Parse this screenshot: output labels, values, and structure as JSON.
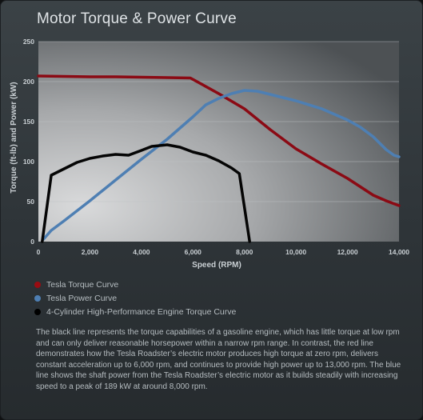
{
  "chart_data": {
    "type": "line",
    "title": "Motor Torque & Power Curve",
    "xlabel": "Speed (RPM)",
    "ylabel": "Torque (ft-lb) and Power (kW)",
    "xlim": [
      0,
      14000
    ],
    "ylim": [
      0,
      250
    ],
    "x_ticks": [
      0,
      2000,
      4000,
      6000,
      8000,
      10000,
      12000,
      14000
    ],
    "x_tick_labels": [
      "0",
      "2,000",
      "4,000",
      "6,000",
      "8,000",
      "10,000",
      "12,000",
      "14,000"
    ],
    "y_ticks": [
      0,
      50,
      100,
      150,
      200,
      250
    ],
    "y_tick_labels": [
      "0",
      "50",
      "100",
      "150",
      "200",
      "250"
    ],
    "grid": "horizontal",
    "legend_position": "below",
    "series": [
      {
        "name": "Tesla Torque Curve",
        "color": "#8b0a14",
        "points": [
          [
            0,
            207
          ],
          [
            1000,
            206.5
          ],
          [
            2000,
            206
          ],
          [
            3000,
            206
          ],
          [
            4000,
            205.5
          ],
          [
            5000,
            205
          ],
          [
            5900,
            204.5
          ],
          [
            7000,
            185
          ],
          [
            8000,
            166
          ],
          [
            9000,
            140
          ],
          [
            10000,
            116
          ],
          [
            11000,
            97
          ],
          [
            12000,
            79
          ],
          [
            13000,
            58
          ],
          [
            13500,
            51
          ],
          [
            14000,
            45
          ]
        ]
      },
      {
        "name": "Tesla Power Curve",
        "color": "#4e7fb3",
        "points": [
          [
            200,
            3
          ],
          [
            500,
            14
          ],
          [
            1000,
            26
          ],
          [
            2000,
            51
          ],
          [
            3000,
            77
          ],
          [
            4000,
            103
          ],
          [
            5000,
            128
          ],
          [
            6000,
            156
          ],
          [
            6500,
            171
          ],
          [
            7000,
            179
          ],
          [
            7500,
            185
          ],
          [
            8000,
            189
          ],
          [
            8500,
            188
          ],
          [
            9000,
            184
          ],
          [
            10000,
            176
          ],
          [
            11000,
            166
          ],
          [
            12000,
            152
          ],
          [
            12500,
            143
          ],
          [
            13000,
            131
          ],
          [
            13500,
            115
          ],
          [
            13800,
            108
          ],
          [
            14000,
            106
          ]
        ]
      },
      {
        "name": "4-Cylinder High-Performance Engine Torque Curve",
        "color": "#050505",
        "points": [
          [
            150,
            0
          ],
          [
            500,
            83
          ],
          [
            1000,
            91
          ],
          [
            1500,
            99
          ],
          [
            2000,
            104
          ],
          [
            2500,
            107
          ],
          [
            3000,
            109
          ],
          [
            3500,
            108
          ],
          [
            4000,
            114
          ],
          [
            4400,
            119
          ],
          [
            5000,
            121
          ],
          [
            5500,
            118
          ],
          [
            6000,
            112
          ],
          [
            6500,
            108
          ],
          [
            7000,
            101
          ],
          [
            7500,
            92
          ],
          [
            7800,
            85
          ],
          [
            8200,
            0
          ]
        ]
      }
    ]
  },
  "description": "The black line represents the torque capabilities of a gasoline engine, which has little torque at low rpm and can only deliver reasonable horsepower within a narrow rpm range. In contrast, the red line demonstrates how the Tesla Roadster’s electric motor produces high torque at zero rpm, delivers constant acceleration up to 6,000 rpm, and continues to provide high power up to 13,000 rpm. The blue line shows the shaft power from the Tesla Roadster’s electric motor as it builds steadily with increasing speed to a peak of 189 kW at around 8,000 rpm."
}
